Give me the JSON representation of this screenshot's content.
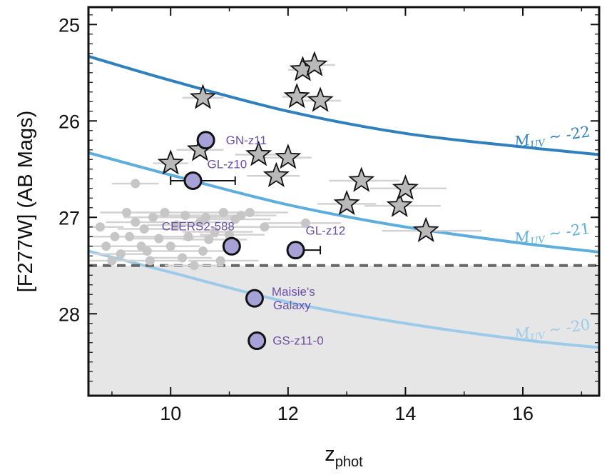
{
  "colors": {
    "curve_22": "#2f80bd",
    "curve_21": "#5eaedd",
    "curve_20": "#9ccbe9",
    "highlight": "#a6a2d8",
    "label": "#6a50a7",
    "star_fill": "#b9b9b9",
    "small_point": "#c6c6c6",
    "errorbar": "#d3d3d3",
    "limit_line": "#666666",
    "shade": "#e6e6e6"
  },
  "chart_data": {
    "type": "scatter",
    "xlabel": "z",
    "xlabel_sub": "phot",
    "ylabel": "[F277W] (AB Mags)",
    "xlim": [
      8.6,
      17.3
    ],
    "ylim": [
      28.85,
      24.82
    ],
    "x_ticks": [
      10,
      12,
      14,
      16
    ],
    "y_ticks": [
      25,
      26,
      27,
      28
    ],
    "y_inverted": true,
    "limit_mag": 27.5,
    "shaded_region": "below 27.5 mag limit",
    "muv_curves": [
      {
        "name": "M_UV ~ -22",
        "prefix": "M",
        "sub": "UV",
        "suffix": " ~ -22",
        "color_key": "curve_22",
        "points": [
          [
            8.6,
            25.33
          ],
          [
            10,
            25.58
          ],
          [
            12,
            25.9
          ],
          [
            14,
            26.13
          ],
          [
            16,
            26.27
          ],
          [
            17.3,
            26.35
          ]
        ]
      },
      {
        "name": "M_UV ~ -21",
        "prefix": "M",
        "sub": "UV",
        "suffix": " ~ -21",
        "color_key": "curve_21",
        "points": [
          [
            8.6,
            26.33
          ],
          [
            10,
            26.56
          ],
          [
            12,
            26.87
          ],
          [
            14,
            27.1
          ],
          [
            16,
            27.27
          ],
          [
            17.3,
            27.36
          ]
        ]
      },
      {
        "name": "M_UV ~ -20",
        "prefix": "M",
        "sub": "UV",
        "suffix": " ~ -20",
        "color_key": "curve_20",
        "points": [
          [
            8.6,
            27.35
          ],
          [
            10,
            27.57
          ],
          [
            12,
            27.88
          ],
          [
            14,
            28.1
          ],
          [
            16,
            28.27
          ],
          [
            17.3,
            28.35
          ]
        ]
      }
    ],
    "star_candidates": [
      {
        "z": 10.0,
        "mag": 26.44,
        "zlo": 9.7,
        "zhi": 10.3
      },
      {
        "z": 10.5,
        "mag": 26.3,
        "zlo": 10.1,
        "zhi": 10.9
      },
      {
        "z": 10.55,
        "mag": 25.76,
        "zlo": 10.2,
        "zhi": 10.9
      },
      {
        "z": 11.5,
        "mag": 26.35,
        "zlo": 11.1,
        "zhi": 11.9
      },
      {
        "z": 11.8,
        "mag": 26.57,
        "zlo": 11.3,
        "zhi": 12.2
      },
      {
        "z": 12.0,
        "mag": 26.38,
        "zlo": 11.6,
        "zhi": 12.4
      },
      {
        "z": 12.15,
        "mag": 25.75,
        "zlo": 11.9,
        "zhi": 12.5
      },
      {
        "z": 12.25,
        "mag": 25.47,
        "zlo": 12.0,
        "zhi": 12.6
      },
      {
        "z": 12.45,
        "mag": 25.42,
        "zlo": 12.2,
        "zhi": 12.8
      },
      {
        "z": 12.55,
        "mag": 25.79,
        "zlo": 12.2,
        "zhi": 12.9
      },
      {
        "z": 13.0,
        "mag": 26.86,
        "zlo": 12.5,
        "zhi": 13.5
      },
      {
        "z": 13.25,
        "mag": 26.62,
        "zlo": 12.7,
        "zhi": 13.9
      },
      {
        "z": 13.9,
        "mag": 26.88,
        "zlo": 13.3,
        "zhi": 14.6
      },
      {
        "z": 14.0,
        "mag": 26.7,
        "zlo": 13.4,
        "zhi": 14.7
      },
      {
        "z": 14.35,
        "mag": 27.14,
        "zlo": 13.6,
        "zhi": 15.3
      }
    ],
    "small_sources": [
      {
        "z": 9.4,
        "mag": 26.65,
        "zlo": 9.0,
        "zhi": 9.8
      },
      {
        "z": 8.8,
        "mag": 27.1,
        "zlo": 8.6,
        "zhi": 9.2
      },
      {
        "z": 8.9,
        "mag": 27.3,
        "zlo": 8.6,
        "zhi": 9.3
      },
      {
        "z": 9.0,
        "mag": 27.45,
        "zlo": 8.6,
        "zhi": 9.4
      },
      {
        "z": 9.15,
        "mag": 27.38,
        "zlo": 8.7,
        "zhi": 9.6
      },
      {
        "z": 9.25,
        "mag": 26.95,
        "zlo": 8.8,
        "zhi": 9.7
      },
      {
        "z": 9.3,
        "mag": 27.2,
        "zlo": 8.9,
        "zhi": 9.8
      },
      {
        "z": 9.4,
        "mag": 27.05,
        "zlo": 8.9,
        "zhi": 9.9
      },
      {
        "z": 9.5,
        "mag": 27.3,
        "zlo": 9.0,
        "zhi": 10.0
      },
      {
        "z": 9.55,
        "mag": 27.12,
        "zlo": 9.1,
        "zhi": 10.1
      },
      {
        "z": 9.65,
        "mag": 27.45,
        "zlo": 9.2,
        "zhi": 10.2
      },
      {
        "z": 9.7,
        "mag": 27.0,
        "zlo": 9.2,
        "zhi": 10.3
      },
      {
        "z": 9.8,
        "mag": 27.22,
        "zlo": 9.3,
        "zhi": 10.4
      },
      {
        "z": 9.9,
        "mag": 26.95,
        "zlo": 9.4,
        "zhi": 10.4
      },
      {
        "z": 10.0,
        "mag": 27.3,
        "zlo": 9.5,
        "zhi": 10.5
      },
      {
        "z": 10.1,
        "mag": 27.08,
        "zlo": 9.6,
        "zhi": 10.6
      },
      {
        "z": 10.2,
        "mag": 27.42,
        "zlo": 9.7,
        "zhi": 10.7
      },
      {
        "z": 10.25,
        "mag": 26.98,
        "zlo": 9.7,
        "zhi": 10.8
      },
      {
        "z": 10.3,
        "mag": 27.2,
        "zlo": 9.8,
        "zhi": 10.8
      },
      {
        "z": 10.4,
        "mag": 27.5,
        "zlo": 9.9,
        "zhi": 10.9
      },
      {
        "z": 10.5,
        "mag": 27.05,
        "zlo": 10.0,
        "zhi": 11.0
      },
      {
        "z": 10.55,
        "mag": 27.35,
        "zlo": 10.0,
        "zhi": 11.1
      },
      {
        "z": 10.6,
        "mag": 27.0,
        "zlo": 10.1,
        "zhi": 11.2
      },
      {
        "z": 10.65,
        "mag": 27.23,
        "zlo": 10.2,
        "zhi": 11.3
      },
      {
        "z": 10.75,
        "mag": 27.15,
        "zlo": 10.2,
        "zhi": 11.4
      },
      {
        "z": 10.85,
        "mag": 27.45,
        "zlo": 10.3,
        "zhi": 11.5
      },
      {
        "z": 10.9,
        "mag": 26.95,
        "zlo": 10.4,
        "zhi": 11.5
      },
      {
        "z": 11.0,
        "mag": 27.18,
        "zlo": 10.5,
        "zhi": 11.6
      },
      {
        "z": 11.1,
        "mag": 27.02,
        "zlo": 10.6,
        "zhi": 11.7
      },
      {
        "z": 11.2,
        "mag": 26.98,
        "zlo": 10.7,
        "zhi": 11.8
      },
      {
        "z": 11.35,
        "mag": 26.95,
        "zlo": 10.8,
        "zhi": 12.0
      },
      {
        "z": 11.6,
        "mag": 27.1,
        "zlo": 11.0,
        "zhi": 12.3
      },
      {
        "z": 12.3,
        "mag": 27.06,
        "zlo": 11.6,
        "zhi": 12.9
      },
      {
        "z": 9.05,
        "mag": 27.2,
        "zlo": 8.6,
        "zhi": 9.5
      },
      {
        "z": 9.6,
        "mag": 27.35,
        "zlo": 9.1,
        "zhi": 10.1
      }
    ],
    "highlighted_sources": [
      {
        "name": "GN-z11",
        "z": 10.6,
        "mag": 26.2,
        "err_lo": 0.0,
        "err_hi": 0.0
      },
      {
        "name": "GL-z10",
        "z": 10.38,
        "mag": 26.62,
        "err_lo": 0.38,
        "err_hi": 0.72
      },
      {
        "name": "CEERS2-588",
        "z": 11.04,
        "mag": 27.3,
        "err_lo": 0.0,
        "err_hi": 0.0
      },
      {
        "name": "GL-z12",
        "z": 12.13,
        "mag": 27.34,
        "err_lo": 0.0,
        "err_hi": 0.42
      },
      {
        "name": "Maisie's Galaxy",
        "z": 11.43,
        "mag": 27.84,
        "err_lo": 0.0,
        "err_hi": 0.0
      },
      {
        "name": "GS-z11-0",
        "z": 11.47,
        "mag": 28.28,
        "err_lo": 0.0,
        "err_hi": 0.0
      }
    ]
  }
}
